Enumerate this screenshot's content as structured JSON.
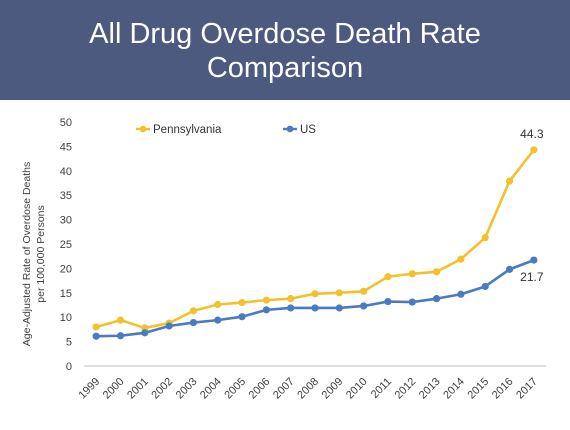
{
  "slide": {
    "title_line1": "All Drug Overdose Death Rate",
    "title_line2": "Comparison"
  },
  "chart_data": {
    "type": "line",
    "title": "",
    "xlabel": "",
    "ylabel": "Age-Adjusted Rate of Overdose Deaths per 100,000 Persons",
    "ylabel_line1": "Age-Adjusted Rate of Overdose Deaths",
    "ylabel_line2": "per 100,000 Persons",
    "ylim": [
      0,
      50
    ],
    "yticks": [
      0,
      5,
      10,
      15,
      20,
      25,
      30,
      35,
      40,
      45,
      50
    ],
    "grid": false,
    "legend": "top-left",
    "categories": [
      "1999",
      "2000",
      "2001",
      "2002",
      "2003",
      "2004",
      "2005",
      "2006",
      "2007",
      "2008",
      "2009",
      "2010",
      "2011",
      "2012",
      "2013",
      "2014",
      "2015",
      "2016",
      "2017"
    ],
    "series": [
      {
        "name": "Pennsylvania",
        "color": "#f2c12e",
        "values": [
          8.0,
          9.4,
          7.8,
          8.8,
          11.3,
          12.6,
          13.0,
          13.5,
          13.8,
          14.8,
          15.0,
          15.3,
          18.3,
          18.9,
          19.3,
          21.9,
          26.3,
          37.9,
          44.3
        ]
      },
      {
        "name": "US",
        "color": "#4a7bc0",
        "values": [
          6.1,
          6.2,
          6.8,
          8.2,
          8.9,
          9.4,
          10.1,
          11.5,
          11.9,
          11.9,
          11.9,
          12.3,
          13.2,
          13.1,
          13.8,
          14.7,
          16.3,
          19.8,
          21.7
        ]
      }
    ],
    "annotations": [
      {
        "series": "Pennsylvania",
        "category": "2017",
        "text": "44.3"
      },
      {
        "series": "US",
        "category": "2017",
        "text": "21.7"
      }
    ]
  }
}
